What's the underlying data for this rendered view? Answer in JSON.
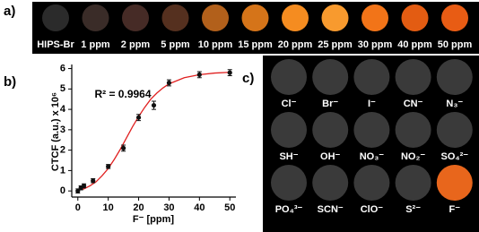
{
  "strip": {
    "label": "a)",
    "items": [
      {
        "label": "HIPS-Br",
        "color": "#2b2b2b"
      },
      {
        "label": "1 ppm",
        "color": "#3a2c28"
      },
      {
        "label": "2 ppm",
        "color": "#462b26"
      },
      {
        "label": "5 ppm",
        "color": "#55301f"
      },
      {
        "label": "10 ppm",
        "color": "#b2601b"
      },
      {
        "label": "15 ppm",
        "color": "#d57419"
      },
      {
        "label": "20 ppm",
        "color": "#f58c20"
      },
      {
        "label": "25 ppm",
        "color": "#f89a2e"
      },
      {
        "label": "30 ppm",
        "color": "#f27418"
      },
      {
        "label": "40 ppm",
        "color": "#e35c12"
      },
      {
        "label": "50 ppm",
        "color": "#e85c14"
      }
    ]
  },
  "chart_data": {
    "type": "scatter",
    "panel_label": "b)",
    "x_label": "F⁻ [ppm]",
    "y_label": "CTCF (a.u.) x 10⁶",
    "annotation": "R² = 0.9964",
    "x": [
      0,
      1,
      2,
      5,
      10,
      15,
      20,
      25,
      30,
      40,
      50
    ],
    "values": [
      0.0,
      0.15,
      0.25,
      0.5,
      1.2,
      2.1,
      3.6,
      4.2,
      5.3,
      5.7,
      5.8
    ],
    "errors": [
      0.1,
      0.1,
      0.1,
      0.1,
      0.1,
      0.15,
      0.15,
      0.2,
      0.15,
      0.15,
      0.15
    ],
    "color": "#111111",
    "fit": {
      "color": "#e02020",
      "x": [
        0,
        2,
        4,
        6,
        8,
        10,
        12,
        14,
        16,
        18,
        20,
        22,
        24,
        26,
        28,
        30,
        35,
        40,
        45,
        50
      ],
      "values": [
        0.05,
        0.1,
        0.25,
        0.45,
        0.75,
        1.1,
        1.55,
        2.05,
        2.6,
        3.15,
        3.65,
        4.1,
        4.5,
        4.8,
        5.05,
        5.25,
        5.55,
        5.7,
        5.78,
        5.82
      ]
    },
    "xlim": [
      -2,
      52
    ],
    "ylim": [
      -0.3,
      6.2
    ],
    "xticks": [
      0,
      10,
      20,
      30,
      40,
      50
    ],
    "yticks": [
      0,
      1,
      2,
      3,
      4,
      5,
      6
    ]
  },
  "selectivity": {
    "label": "c)",
    "items": [
      {
        "label": "Cl⁻",
        "color": "#3a3a3a"
      },
      {
        "label": "Br⁻",
        "color": "#3a3a3a"
      },
      {
        "label": "I⁻",
        "color": "#3a3a3a"
      },
      {
        "label": "CN⁻",
        "color": "#3a3a3a"
      },
      {
        "label": "N₃⁻",
        "color": "#3a3a3a"
      },
      {
        "label": "SH⁻",
        "color": "#3a3a3a"
      },
      {
        "label": "OH⁻",
        "color": "#3a3a3a"
      },
      {
        "label": "NO₃⁻",
        "color": "#3a3a3a"
      },
      {
        "label": "NO₂⁻",
        "color": "#3a3a3a"
      },
      {
        "label": "SO₄²⁻",
        "color": "#3a3a3a"
      },
      {
        "label": "PO₄³⁻",
        "color": "#3a3a3a"
      },
      {
        "label": "SCN⁻",
        "color": "#3a3a3a"
      },
      {
        "label": "ClO⁻",
        "color": "#3a3a3a"
      },
      {
        "label": "S²⁻",
        "color": "#3a3a3a"
      },
      {
        "label": "F⁻",
        "color": "#e8661c"
      }
    ]
  }
}
